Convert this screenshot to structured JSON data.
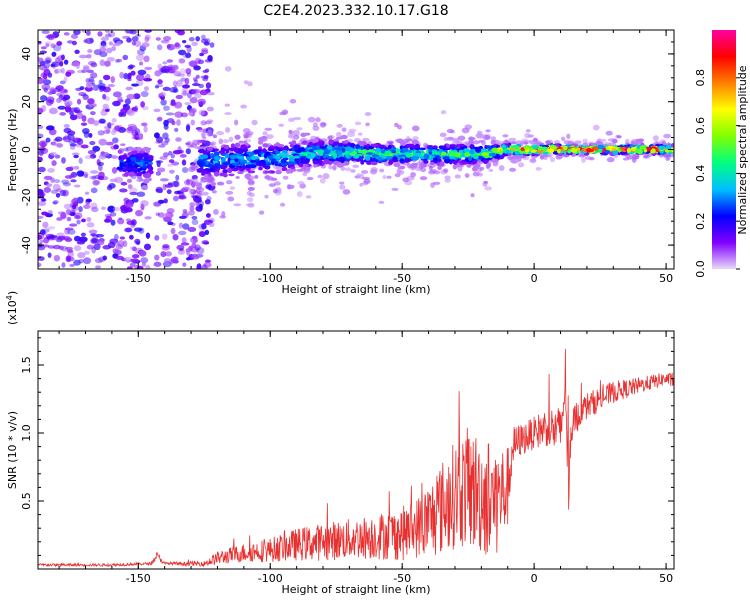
{
  "figure": {
    "title": "C2E4.2023.332.10.17.G18"
  },
  "chart_data": [
    {
      "type": "heatmap",
      "title": "C2E4.2023.332.10.17.G18",
      "xlabel": "Height of straight line (km)",
      "ylabel": "Frequency (Hz)",
      "xlim": [
        -188,
        53
      ],
      "ylim": [
        -50,
        50
      ],
      "x_ticks": [
        -150,
        -100,
        -50,
        0,
        50
      ],
      "x_tick_labels": [
        "-150",
        "-100",
        "-50",
        "0",
        "50"
      ],
      "y_ticks": [
        -40,
        -20,
        0,
        20,
        40
      ],
      "y_tick_labels": [
        "-40",
        "-20",
        "0",
        "20",
        "40"
      ],
      "colorbar": {
        "label": "Normalized spectral amplitude",
        "range": [
          0,
          1
        ],
        "ticks": [
          0.0,
          0.2,
          0.4,
          0.6,
          0.8
        ],
        "tick_labels": [
          "0.0",
          "0.2",
          "0.4",
          "0.6",
          "0.8"
        ],
        "colormap": [
          "#e8d8f8",
          "#8000ff",
          "#0000ff",
          "#00c0ff",
          "#00ff80",
          "#80ff00",
          "#ffff00",
          "#ff8000",
          "#ff0000",
          "#ff00a0"
        ]
      },
      "ridge": {
        "x": [
          -155,
          -150,
          -145,
          -125,
          -110,
          -100,
          -80,
          -60,
          -40,
          -20,
          -10,
          0,
          10,
          20,
          53
        ],
        "center_freq": [
          -6,
          -6,
          -6,
          -5,
          -4,
          -4,
          -1,
          -2,
          -2,
          -2,
          0,
          0,
          0,
          0,
          0
        ],
        "spread": [
          6,
          6,
          6,
          7,
          7,
          6,
          5,
          4,
          4,
          4,
          2,
          2,
          1.5,
          1.5,
          1.5
        ],
        "amplitude": [
          0.25,
          0.3,
          0.25,
          0.3,
          0.3,
          0.35,
          0.4,
          0.45,
          0.45,
          0.45,
          0.7,
          0.8,
          0.85,
          0.85,
          0.85
        ]
      },
      "noise_region": {
        "x_range": [
          -188,
          -122
        ],
        "freq_range": [
          -50,
          50
        ],
        "amplitude": 0.12
      }
    },
    {
      "type": "line",
      "title": "",
      "xlabel": "Height of straight line (km)",
      "ylabel": "SNR (10 * v/v)",
      "y_multiplier_label": "(x10",
      "y_multiplier_exp": "4",
      "y_multiplier_close": ")",
      "xlim": [
        -188,
        53
      ],
      "ylim": [
        0,
        1.75
      ],
      "x_ticks": [
        -150,
        -100,
        -50,
        0,
        50
      ],
      "x_tick_labels": [
        "-150",
        "-100",
        "-50",
        "0",
        "50"
      ],
      "y_ticks": [
        0.5,
        1.0,
        1.5
      ],
      "y_tick_labels": [
        "0.5",
        "1.0",
        "1.5"
      ],
      "line_color": "#e83030",
      "envelope": {
        "x": [
          -188,
          -160,
          -145,
          -143,
          -140,
          -125,
          -120,
          -110,
          -100,
          -90,
          -80,
          -70,
          -60,
          -50,
          -45,
          -40,
          -35,
          -30,
          -25,
          -20,
          -15,
          -10,
          -8,
          -5,
          0,
          5,
          10,
          12,
          13,
          15,
          20,
          30,
          40,
          50,
          53
        ],
        "mean": [
          0.03,
          0.03,
          0.04,
          0.1,
          0.04,
          0.04,
          0.08,
          0.12,
          0.14,
          0.18,
          0.2,
          0.22,
          0.24,
          0.26,
          0.3,
          0.35,
          0.45,
          0.55,
          0.6,
          0.55,
          0.5,
          0.6,
          0.9,
          0.95,
          1.0,
          1.05,
          1.0,
          1.4,
          0.6,
          1.1,
          1.2,
          1.3,
          1.35,
          1.4,
          1.38
        ],
        "amplitude": [
          0.01,
          0.01,
          0.01,
          0.03,
          0.01,
          0.02,
          0.05,
          0.07,
          0.09,
          0.12,
          0.14,
          0.15,
          0.17,
          0.2,
          0.22,
          0.28,
          0.35,
          0.4,
          0.45,
          0.45,
          0.45,
          0.3,
          0.15,
          0.12,
          0.12,
          0.15,
          0.2,
          0.3,
          0.3,
          0.12,
          0.1,
          0.08,
          0.06,
          0.05,
          0.05
        ]
      }
    }
  ]
}
